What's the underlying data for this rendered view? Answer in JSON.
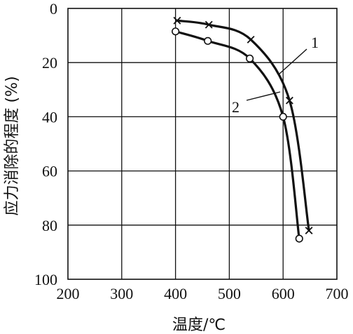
{
  "chart_data": {
    "type": "line",
    "title": "",
    "xlabel": "温度/℃",
    "ylabel": "应力消除的程度 (%)",
    "xlim": [
      200,
      700
    ],
    "ylim": [
      0,
      100
    ],
    "y_inverted": true,
    "grid": true,
    "x_ticks": [
      200,
      300,
      400,
      500,
      600,
      700
    ],
    "y_ticks": [
      0,
      20,
      40,
      60,
      80,
      100
    ],
    "series": [
      {
        "name": "1",
        "marker": "cross",
        "points": [
          [
            403,
            4.5
          ],
          [
            462,
            6
          ],
          [
            540,
            11.5
          ],
          [
            612,
            34
          ],
          [
            648,
            82
          ]
        ]
      },
      {
        "name": "2",
        "marker": "circle",
        "points": [
          [
            400,
            8.5
          ],
          [
            460,
            12
          ],
          [
            538,
            18.5
          ],
          [
            600,
            40
          ],
          [
            630,
            85
          ]
        ]
      }
    ]
  }
}
